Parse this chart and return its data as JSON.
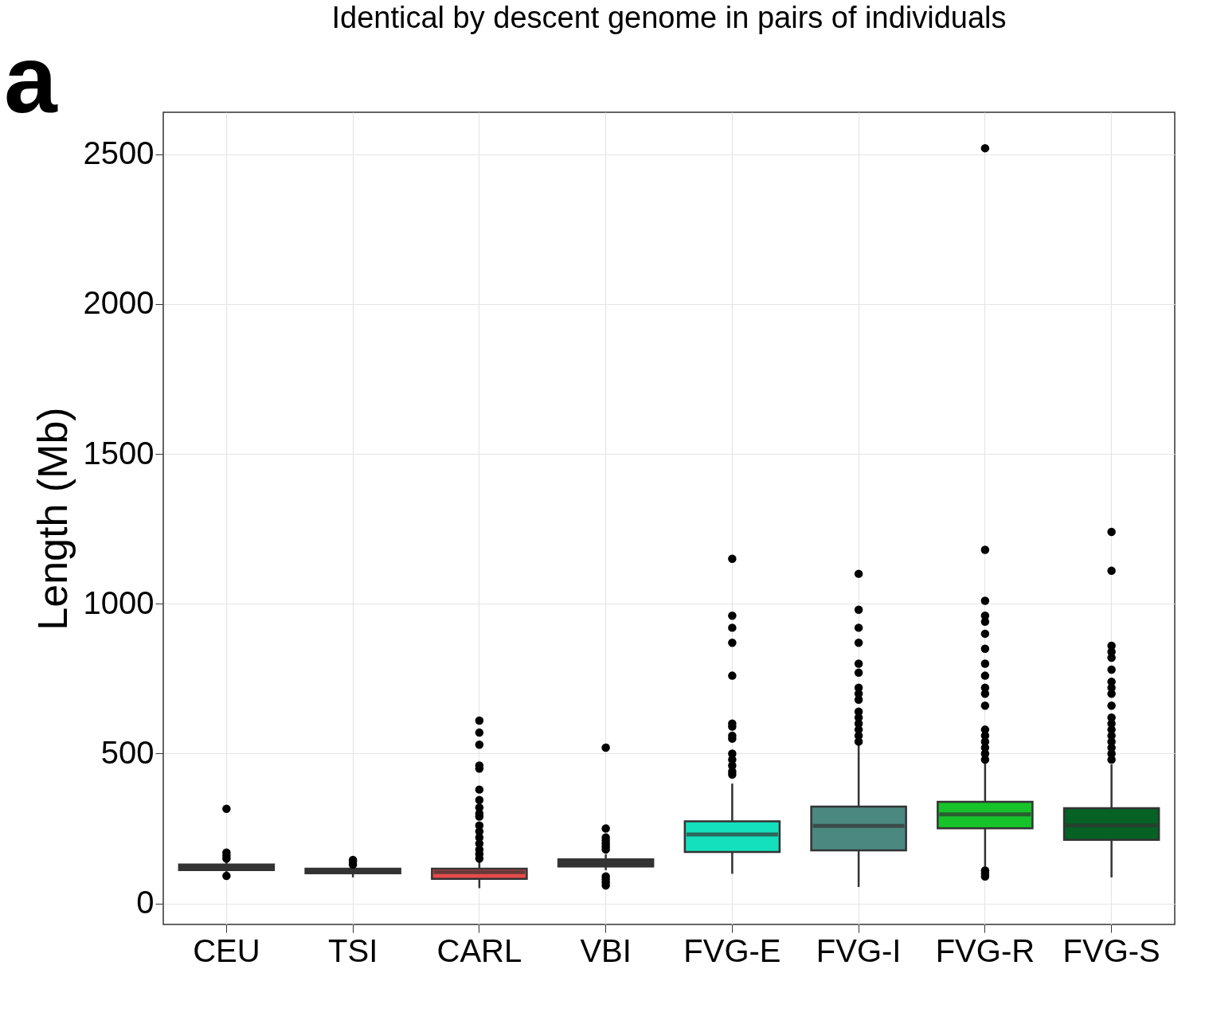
{
  "chart_data": {
    "type": "box",
    "title": "Identical by descent genome in pairs of individuals",
    "ylabel": "Length (Mb)",
    "annotations": [
      "a"
    ],
    "categories": [
      "CEU",
      "TSI",
      "CARL",
      "VBI",
      "FVG-E",
      "FVG-I",
      "FVG-R",
      "FVG-S"
    ],
    "colors": [
      "#333333",
      "#333333",
      "#e64b4b",
      "#333333",
      "#14e0bd",
      "#4a8880",
      "#17c22a",
      "#066224"
    ],
    "boxes": [
      {
        "low": 100,
        "q1": 111,
        "median": 120,
        "q3": 130,
        "high": 140,
        "outliers": [
          92,
          150,
          160,
          170,
          316
        ]
      },
      {
        "low": 87,
        "q1": 101,
        "median": 108,
        "q3": 116,
        "high": 125,
        "outliers": [
          130,
          140,
          145
        ]
      },
      {
        "low": 51,
        "q1": 82,
        "median": 105,
        "q3": 116,
        "high": 140,
        "outliers": [
          150,
          165,
          180,
          200,
          220,
          240,
          260,
          290,
          300,
          320,
          345,
          380,
          450,
          460,
          530,
          570,
          610
        ]
      },
      {
        "low": 111,
        "q1": 123,
        "median": 135,
        "q3": 147,
        "high": 164,
        "outliers": [
          60,
          70,
          80,
          90,
          180,
          190,
          200,
          210,
          220,
          250,
          520
        ]
      },
      {
        "low": 99,
        "q1": 172,
        "median": 230,
        "q3": 274,
        "high": 400,
        "outliers": [
          430,
          440,
          460,
          480,
          500,
          550,
          560,
          590,
          600,
          760,
          870,
          920,
          960,
          1150
        ]
      },
      {
        "low": 55,
        "q1": 177,
        "median": 259,
        "q3": 323,
        "high": 528,
        "outliers": [
          540,
          560,
          580,
          600,
          620,
          640,
          680,
          700,
          720,
          770,
          800,
          870,
          920,
          980,
          1100
        ]
      },
      {
        "low": 124,
        "q1": 251,
        "median": 297,
        "q3": 339,
        "high": 469,
        "outliers": [
          90,
          100,
          110,
          480,
          500,
          520,
          540,
          560,
          580,
          660,
          700,
          720,
          760,
          800,
          850,
          900,
          940,
          960,
          1010,
          1180,
          2520
        ]
      },
      {
        "low": 87,
        "q1": 212,
        "median": 260,
        "q3": 318,
        "high": 464,
        "outliers": [
          480,
          500,
          520,
          540,
          560,
          580,
          600,
          620,
          660,
          700,
          720,
          740,
          780,
          820,
          840,
          860,
          1110,
          1240
        ]
      }
    ],
    "ylim": [
      -70,
      2640
    ],
    "yticks": [
      0,
      500,
      1000,
      1500,
      2000,
      2500
    ],
    "grid": true
  }
}
